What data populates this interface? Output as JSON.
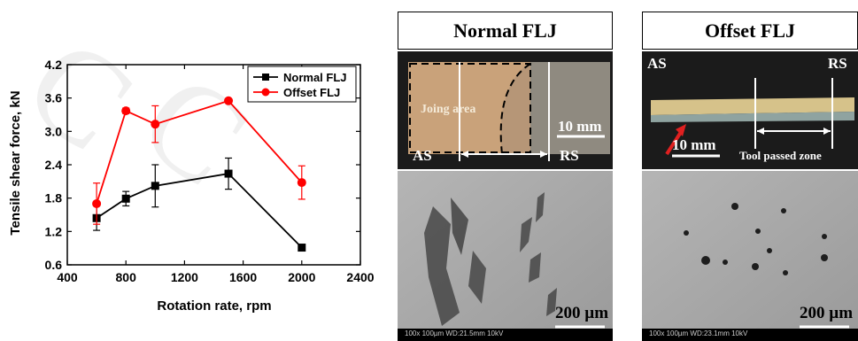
{
  "chart_data": {
    "type": "line",
    "title": "",
    "xlabel": "Rotation rate, rpm",
    "ylabel": "Tensile shear force, kN",
    "xlim": [
      400,
      2400
    ],
    "ylim": [
      0.6,
      4.2
    ],
    "xticks": [
      400,
      800,
      1200,
      1600,
      2000,
      2400
    ],
    "yticks": [
      0.6,
      1.2,
      1.8,
      2.4,
      3.0,
      3.6,
      4.2
    ],
    "xtick_labels": [
      "400",
      "800",
      "1200",
      "1600",
      "2000",
      "2400"
    ],
    "ytick_labels": [
      "0.6",
      "1.2",
      "1.8",
      "2.4",
      "3.0",
      "3.6",
      "4.2"
    ],
    "legend_position": "top-right",
    "series": [
      {
        "name": "Normal FLJ",
        "color": "#000000",
        "marker": "square",
        "x": [
          600,
          800,
          1000,
          1500,
          2000
        ],
        "y": [
          1.44,
          1.79,
          2.02,
          2.24,
          0.91
        ],
        "err": [
          0.22,
          0.13,
          0.38,
          0.28,
          0.05
        ]
      },
      {
        "name": "Offset FLJ",
        "color": "#ff0000",
        "marker": "circle",
        "x": [
          600,
          800,
          1000,
          1500,
          2000
        ],
        "y": [
          1.7,
          3.37,
          3.13,
          3.55,
          2.08
        ],
        "err": [
          0.37,
          0.05,
          0.33,
          0.02,
          0.3
        ]
      }
    ]
  },
  "panels": {
    "normal": {
      "title": "Normal FLJ",
      "joint_label": "Joing area",
      "scale_macro": "10 mm",
      "as_label": "AS",
      "rs_label": "RS",
      "scale_micro": "200 µm",
      "sem_info": "100x 100µm WD:21.5mm 10kV"
    },
    "offset": {
      "title": "Offset FLJ",
      "as_label": "AS",
      "rs_label": "RS",
      "scale_macro": "10 mm",
      "tool_zone_label": "Tool passed zone",
      "scale_micro": "200 µm",
      "sem_info": "100x 100µm WD:23.1mm 10kV"
    }
  },
  "colors": {
    "photo_dark": "#1b1b1b",
    "sheet_copper": "#c9a27a",
    "sem_gray": "#a9a9a9"
  }
}
